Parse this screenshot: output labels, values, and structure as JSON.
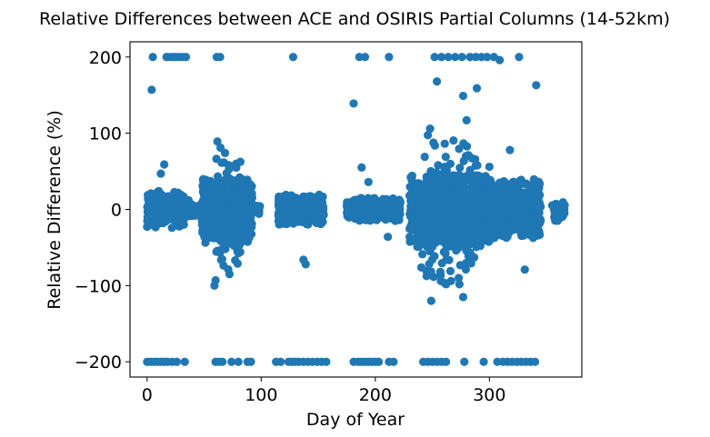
{
  "chart_data": {
    "type": "scatter",
    "title": "Relative Differences between ACE and OSIRIS Partial Columns (14-52km)",
    "xlabel": "Day of Year",
    "ylabel": "Relative Difference (%)",
    "xlim": [
      -15,
      381
    ],
    "ylim": [
      -220,
      220
    ],
    "xticks": [
      0,
      100,
      200,
      300
    ],
    "yticks": [
      -200,
      -100,
      0,
      100,
      200
    ],
    "xtick_labels": [
      "0",
      "100",
      "200",
      "300"
    ],
    "ytick_labels": [
      "−200",
      "−100",
      "0",
      "100",
      "200"
    ],
    "grid": false,
    "legend": "none",
    "marker_color": "#1f77b4",
    "clusters": [
      {
        "x": [
          0,
          33
        ],
        "y": [
          -25,
          25
        ],
        "n": 180
      },
      {
        "x": [
          33,
          45
        ],
        "y": [
          -12,
          12
        ],
        "n": 60
      },
      {
        "x": [
          48,
          92
        ],
        "y": [
          -45,
          40
        ],
        "n": 650
      },
      {
        "x": [
          60,
          82
        ],
        "y": [
          -90,
          90
        ],
        "n": 120
      },
      {
        "x": [
          92,
          100
        ],
        "y": [
          -6,
          6
        ],
        "n": 20
      },
      {
        "x": [
          115,
          155
        ],
        "y": [
          -20,
          20
        ],
        "n": 360
      },
      {
        "x": [
          175,
          222
        ],
        "y": [
          -15,
          15
        ],
        "n": 360
      },
      {
        "x": [
          230,
          300
        ],
        "y": [
          -50,
          45
        ],
        "n": 1000
      },
      {
        "x": [
          240,
          290
        ],
        "y": [
          -100,
          100
        ],
        "n": 200
      },
      {
        "x": [
          300,
          345
        ],
        "y": [
          -40,
          40
        ],
        "n": 550
      },
      {
        "x": [
          355,
          366
        ],
        "y": [
          -15,
          10
        ],
        "n": 40
      }
    ],
    "outliers": [
      {
        "x": 5,
        "y": 200
      },
      {
        "x": 4,
        "y": 157
      },
      {
        "x": 17,
        "y": 200
      },
      {
        "x": 20,
        "y": 200
      },
      {
        "x": 23,
        "y": 200
      },
      {
        "x": 25,
        "y": 200
      },
      {
        "x": 28,
        "y": 200
      },
      {
        "x": 31,
        "y": 200
      },
      {
        "x": 34,
        "y": 200
      },
      {
        "x": 61,
        "y": 200
      },
      {
        "x": 64,
        "y": 200
      },
      {
        "x": 128,
        "y": 200
      },
      {
        "x": 186,
        "y": 200
      },
      {
        "x": 191,
        "y": 200
      },
      {
        "x": 212,
        "y": 200
      },
      {
        "x": 252,
        "y": 200
      },
      {
        "x": 258,
        "y": 200
      },
      {
        "x": 264,
        "y": 200
      },
      {
        "x": 270,
        "y": 200
      },
      {
        "x": 276,
        "y": 200
      },
      {
        "x": 283,
        "y": 200
      },
      {
        "x": 288,
        "y": 200
      },
      {
        "x": 293,
        "y": 200
      },
      {
        "x": 298,
        "y": 200
      },
      {
        "x": 304,
        "y": 200
      },
      {
        "x": 309,
        "y": 196
      },
      {
        "x": 326,
        "y": 200
      },
      {
        "x": 181,
        "y": 139
      },
      {
        "x": 254,
        "y": 168
      },
      {
        "x": 277,
        "y": 149
      },
      {
        "x": 289,
        "y": 159
      },
      {
        "x": 341,
        "y": 163
      },
      {
        "x": 248,
        "y": 106
      },
      {
        "x": 280,
        "y": 117
      },
      {
        "x": 12,
        "y": 47
      },
      {
        "x": 15,
        "y": 59
      },
      {
        "x": 137,
        "y": -66
      },
      {
        "x": 139,
        "y": -72
      },
      {
        "x": 249,
        "y": -120
      },
      {
        "x": 277,
        "y": -115
      },
      {
        "x": 59,
        "y": -100
      },
      {
        "x": 60,
        "y": -93
      },
      {
        "x": 257,
        "y": -82
      },
      {
        "x": 331,
        "y": -79
      },
      {
        "x": 188,
        "y": 55
      },
      {
        "x": 194,
        "y": 36
      },
      {
        "x": 211,
        "y": -36
      },
      {
        "x": 300,
        "y": 56
      },
      {
        "x": 318,
        "y": 78
      },
      {
        "x": 0,
        "y": -200
      },
      {
        "x": 3,
        "y": -200
      },
      {
        "x": 6,
        "y": -200
      },
      {
        "x": 9,
        "y": -200
      },
      {
        "x": 12,
        "y": -200
      },
      {
        "x": 15,
        "y": -200
      },
      {
        "x": 18,
        "y": -200
      },
      {
        "x": 22,
        "y": -200
      },
      {
        "x": 26,
        "y": -200
      },
      {
        "x": 33,
        "y": -200
      },
      {
        "x": 60,
        "y": -200
      },
      {
        "x": 63,
        "y": -200
      },
      {
        "x": 66,
        "y": -200
      },
      {
        "x": 74,
        "y": -200
      },
      {
        "x": 80,
        "y": -200
      },
      {
        "x": 88,
        "y": -200
      },
      {
        "x": 91,
        "y": -200
      },
      {
        "x": 113,
        "y": -200
      },
      {
        "x": 117,
        "y": -200
      },
      {
        "x": 124,
        "y": -200
      },
      {
        "x": 127,
        "y": -200
      },
      {
        "x": 130,
        "y": -200
      },
      {
        "x": 133,
        "y": -200
      },
      {
        "x": 137,
        "y": -200
      },
      {
        "x": 141,
        "y": -200
      },
      {
        "x": 145,
        "y": -200
      },
      {
        "x": 149,
        "y": -200
      },
      {
        "x": 153,
        "y": -200
      },
      {
        "x": 157,
        "y": -200
      },
      {
        "x": 181,
        "y": -200
      },
      {
        "x": 185,
        "y": -200
      },
      {
        "x": 188,
        "y": -200
      },
      {
        "x": 191,
        "y": -200
      },
      {
        "x": 194,
        "y": -200
      },
      {
        "x": 197,
        "y": -200
      },
      {
        "x": 200,
        "y": -200
      },
      {
        "x": 203,
        "y": -200
      },
      {
        "x": 212,
        "y": -200
      },
      {
        "x": 216,
        "y": -200
      },
      {
        "x": 242,
        "y": -200
      },
      {
        "x": 246,
        "y": -200
      },
      {
        "x": 250,
        "y": -200
      },
      {
        "x": 254,
        "y": -200
      },
      {
        "x": 258,
        "y": -200
      },
      {
        "x": 262,
        "y": -200
      },
      {
        "x": 278,
        "y": -200
      },
      {
        "x": 295,
        "y": -200
      },
      {
        "x": 307,
        "y": -200
      },
      {
        "x": 312,
        "y": -200
      },
      {
        "x": 316,
        "y": -200
      },
      {
        "x": 320,
        "y": -200
      },
      {
        "x": 324,
        "y": -200
      },
      {
        "x": 328,
        "y": -200
      },
      {
        "x": 332,
        "y": -200
      },
      {
        "x": 336,
        "y": -200
      },
      {
        "x": 340,
        "y": -200
      }
    ]
  }
}
